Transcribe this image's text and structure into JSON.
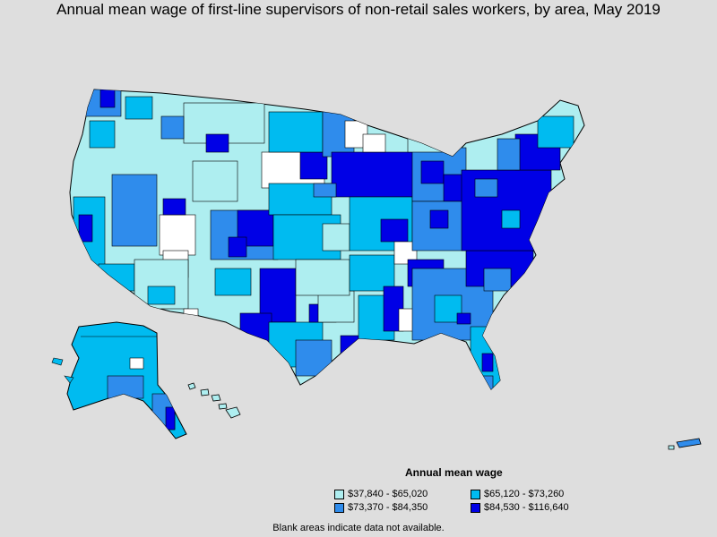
{
  "title": "Annual mean wage of first-line supervisors of non-retail sales workers, by area, May 2019",
  "legend": {
    "title": "Annual mean wage",
    "items": [
      {
        "label": "$37,840 - $65,020",
        "color": "#aeeef0"
      },
      {
        "label": "$65,120 - $73,260",
        "color": "#00bbf0"
      },
      {
        "label": "$73,370 - $84,350",
        "color": "#2f8cec"
      },
      {
        "label": "$84,530 - $116,640",
        "color": "#0000e6"
      }
    ]
  },
  "note": "Blank areas indicate data not available.",
  "colors": {
    "background": "#dedede",
    "no_data": "#ffffff",
    "border": "#000000"
  }
}
